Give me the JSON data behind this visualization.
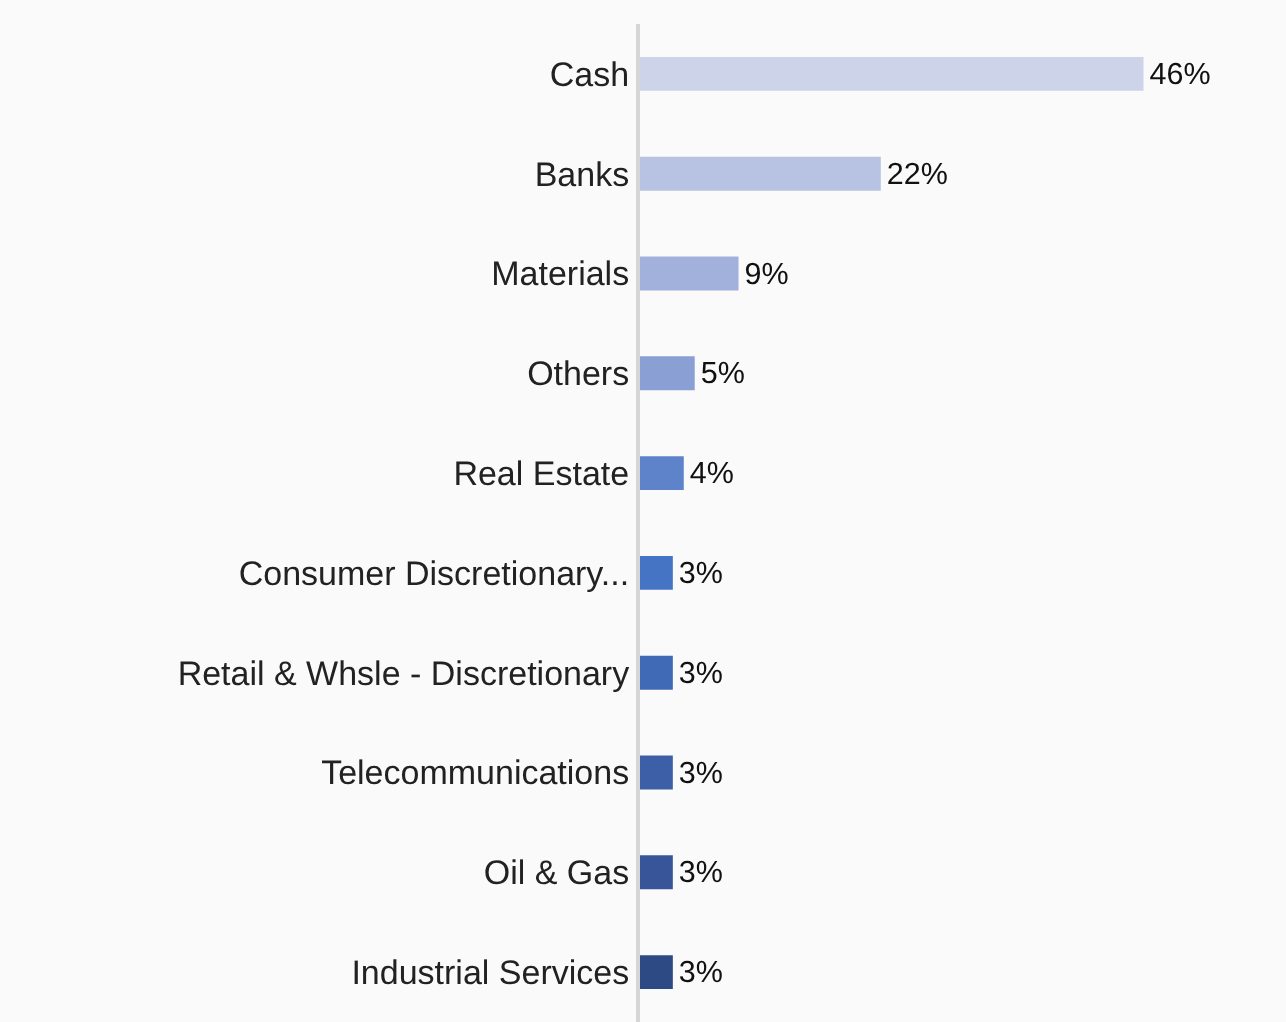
{
  "chart_data": {
    "type": "bar",
    "orientation": "horizontal",
    "categories": [
      "Cash",
      "Banks",
      "Materials",
      "Others",
      "Real Estate",
      "Consumer Discretionary...",
      "Retail & Whsle - Discretionary",
      "Telecommunications",
      "Oil & Gas",
      "Industrial Services"
    ],
    "values": [
      46,
      22,
      9,
      5,
      4,
      3,
      3,
      3,
      3,
      3
    ],
    "value_labels": [
      "46%",
      "22%",
      "9%",
      "5%",
      "4%",
      "3%",
      "3%",
      "3%",
      "3%",
      "3%"
    ],
    "colors": [
      "#cdd3e9",
      "#b8c3e3",
      "#a2b1dc",
      "#8a9fd4",
      "#5f83cb",
      "#4674c4",
      "#4069b6",
      "#3d5fa8",
      "#38559a",
      "#2e4a85"
    ],
    "grid": false,
    "legend": false
  }
}
